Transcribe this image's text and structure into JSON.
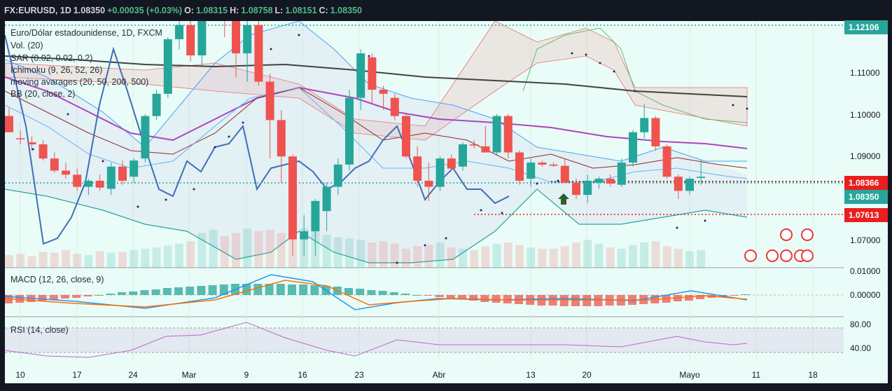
{
  "header": {
    "symbol": "FX:EURUSD, 1D",
    "last": "1.08350",
    "change": "+0.00035 (+0.03%)",
    "o_label": "O:",
    "o_value": "1.08315",
    "h_label": "H:",
    "h_value": "1.08758",
    "l_label": "L:",
    "l_value": "1.08151",
    "c_label": "C:",
    "c_value": "1.08350"
  },
  "legend": {
    "title": "Euro/Dólar estadounidense, 1D, FXCM",
    "vol": "Vol. (20)",
    "sar": "SAR (0.02, 0.02, 0.2)",
    "ichimoku": "Ichimoku (9, 26, 52, 26)",
    "ma": "moving avarages (20, 50, 200, 500)",
    "bb": "BB (20, close, 2)",
    "macd": "MACD (12, 26, close, 9)",
    "rsi": "RSI (14, close)"
  },
  "price_axis": {
    "labels": [
      "1.11000",
      "1.10000",
      "1.09000",
      "1.07000"
    ],
    "badges": [
      {
        "text": "1.12106",
        "color": "#26a69a"
      },
      {
        "text": "1.08366",
        "color": "#e91e1e"
      },
      {
        "text": "1.08350",
        "color": "#26a69a"
      },
      {
        "text": "1.07613",
        "color": "#e91e1e"
      }
    ]
  },
  "macd_axis": [
    "0.01000",
    "0.00000"
  ],
  "rsi_axis": [
    "80.00",
    "40.00"
  ],
  "time_axis": [
    "10",
    "17",
    "24",
    "Mar",
    "9",
    "16",
    "23",
    "Abr",
    "13",
    "20",
    "Mayo",
    "11",
    "18"
  ],
  "events": [
    "6",
    "2",
    "8",
    "9",
    "5",
    "7",
    "4"
  ],
  "colors": {
    "up": "#26a69a",
    "down": "#ef5350",
    "background": "#eafcf7",
    "macd_line": "#2196f3",
    "signal_line": "#ff6d00",
    "rsi": "#ba68c8"
  },
  "chart_data": {
    "type": "candlestick",
    "ylim": [
      1.061,
      1.122
    ],
    "candles": [
      {
        "o": 1.0985,
        "h": 1.1005,
        "l": 1.0945,
        "c": 1.0945
      },
      {
        "o": 1.093,
        "h": 1.095,
        "l": 1.0915,
        "c": 1.0928
      },
      {
        "o": 1.092,
        "h": 1.0935,
        "l": 1.09,
        "c": 1.0915
      },
      {
        "o": 1.0915,
        "h": 1.0925,
        "l": 1.0875,
        "c": 1.088
      },
      {
        "o": 1.088,
        "h": 1.0895,
        "l": 1.0845,
        "c": 1.085
      },
      {
        "o": 1.085,
        "h": 1.087,
        "l": 1.083,
        "c": 1.084
      },
      {
        "o": 1.084,
        "h": 1.0855,
        "l": 1.08,
        "c": 1.081
      },
      {
        "o": 1.081,
        "h": 1.083,
        "l": 1.079,
        "c": 1.0825
      },
      {
        "o": 1.0825,
        "h": 1.084,
        "l": 1.08,
        "c": 1.0808
      },
      {
        "o": 1.0805,
        "h": 1.087,
        "l": 1.079,
        "c": 1.086
      },
      {
        "o": 1.086,
        "h": 1.0875,
        "l": 1.0815,
        "c": 1.0825
      },
      {
        "o": 1.0835,
        "h": 1.088,
        "l": 1.082,
        "c": 1.0875
      },
      {
        "o": 1.088,
        "h": 1.099,
        "l": 1.087,
        "c": 1.0985
      },
      {
        "o": 1.0985,
        "h": 1.105,
        "l": 1.0975,
        "c": 1.104
      },
      {
        "o": 1.104,
        "h": 1.118,
        "l": 1.103,
        "c": 1.1175
      },
      {
        "o": 1.1175,
        "h": 1.1225,
        "l": 1.115,
        "c": 1.121
      },
      {
        "o": 1.121,
        "h": 1.126,
        "l": 1.112,
        "c": 1.1135
      },
      {
        "o": 1.1135,
        "h": 1.13,
        "l": 1.111,
        "c": 1.126
      },
      {
        "o": 1.126,
        "h": 1.14,
        "l": 1.122,
        "c": 1.138
      },
      {
        "o": 1.138,
        "h": 1.143,
        "l": 1.118,
        "c": 1.122
      },
      {
        "o": 1.122,
        "h": 1.133,
        "l": 1.108,
        "c": 1.114
      },
      {
        "o": 1.114,
        "h": 1.128,
        "l": 1.107,
        "c": 1.121
      },
      {
        "o": 1.121,
        "h": 1.128,
        "l": 1.106,
        "c": 1.107
      },
      {
        "o": 1.107,
        "h": 1.109,
        "l": 1.088,
        "c": 1.0975
      },
      {
        "o": 1.0975,
        "h": 1.1,
        "l": 1.082,
        "c": 1.0885
      },
      {
        "o": 1.0885,
        "h": 1.089,
        "l": 1.064,
        "c": 1.068
      },
      {
        "o": 1.068,
        "h": 1.074,
        "l": 1.064,
        "c": 1.07
      },
      {
        "o": 1.07,
        "h": 1.078,
        "l": 1.064,
        "c": 1.0775
      },
      {
        "o": 1.075,
        "h": 1.082,
        "l": 1.07,
        "c": 1.081
      },
      {
        "o": 1.081,
        "h": 1.088,
        "l": 1.079,
        "c": 1.0865
      },
      {
        "o": 1.0865,
        "h": 1.105,
        "l": 1.085,
        "c": 1.103
      },
      {
        "o": 1.103,
        "h": 1.115,
        "l": 1.1,
        "c": 1.114
      },
      {
        "o": 1.113,
        "h": 1.114,
        "l": 1.1015,
        "c": 1.105
      },
      {
        "o": 1.105,
        "h": 1.106,
        "l": 1.1,
        "c": 1.104
      },
      {
        "o": 1.103,
        "h": 1.104,
        "l": 1.0975,
        "c": 1.0985
      },
      {
        "o": 1.0985,
        "h": 1.099,
        "l": 1.088,
        "c": 1.0885
      },
      {
        "o": 1.0885,
        "h": 1.091,
        "l": 1.081,
        "c": 1.0825
      },
      {
        "o": 1.0825,
        "h": 1.087,
        "l": 1.0775,
        "c": 1.081
      },
      {
        "o": 1.081,
        "h": 1.0885,
        "l": 1.08,
        "c": 1.088
      },
      {
        "o": 1.088,
        "h": 1.089,
        "l": 1.085,
        "c": 1.0855
      },
      {
        "o": 1.086,
        "h": 1.092,
        "l": 1.085,
        "c": 1.0915
      },
      {
        "o": 1.0915,
        "h": 1.0925,
        "l": 1.0905,
        "c": 1.0912
      },
      {
        "o": 1.091,
        "h": 1.096,
        "l": 1.0895,
        "c": 1.0895
      },
      {
        "o": 1.0895,
        "h": 1.099,
        "l": 1.089,
        "c": 1.0985
      },
      {
        "o": 1.0985,
        "h": 1.099,
        "l": 1.088,
        "c": 1.0895
      },
      {
        "o": 1.0895,
        "h": 1.09,
        "l": 1.0815,
        "c": 1.0825
      },
      {
        "o": 1.083,
        "h": 1.088,
        "l": 1.081,
        "c": 1.087
      },
      {
        "o": 1.087,
        "h": 1.0875,
        "l": 1.086,
        "c": 1.0865
      },
      {
        "o": 1.0865,
        "h": 1.087,
        "l": 1.086,
        "c": 1.0862
      },
      {
        "o": 1.0862,
        "h": 1.088,
        "l": 1.082,
        "c": 1.082
      },
      {
        "o": 1.082,
        "h": 1.083,
        "l": 1.078,
        "c": 1.079
      },
      {
        "o": 1.079,
        "h": 1.084,
        "l": 1.077,
        "c": 1.0825
      },
      {
        "o": 1.082,
        "h": 1.0835,
        "l": 1.0805,
        "c": 1.083
      },
      {
        "o": 1.083,
        "h": 1.084,
        "l": 1.081,
        "c": 1.0818
      },
      {
        "o": 1.0815,
        "h": 1.088,
        "l": 1.081,
        "c": 1.087
      },
      {
        "o": 1.087,
        "h": 1.095,
        "l": 1.086,
        "c": 1.0945
      },
      {
        "o": 1.0945,
        "h": 1.1015,
        "l": 1.093,
        "c": 1.098
      },
      {
        "o": 1.098,
        "h": 1.0985,
        "l": 1.09,
        "c": 1.091
      },
      {
        "o": 1.091,
        "h": 1.0915,
        "l": 1.083,
        "c": 1.0835
      },
      {
        "o": 1.0835,
        "h": 1.084,
        "l": 1.078,
        "c": 1.08
      },
      {
        "o": 1.08,
        "h": 1.0835,
        "l": 1.079,
        "c": 1.083
      },
      {
        "o": 1.0832,
        "h": 1.0876,
        "l": 1.0815,
        "c": 1.0835
      }
    ]
  }
}
